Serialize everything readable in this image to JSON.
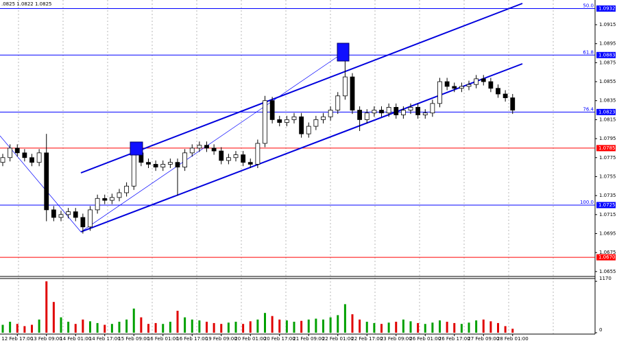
{
  "chart_data": {
    "type": "candlestick",
    "header": ".0825 1.0822 1.0825",
    "categories": [
      null,
      null,
      "12 Feb 17:00",
      null,
      null,
      null,
      "13 Feb 09:00",
      null,
      null,
      null,
      "14 Feb 01:00",
      null,
      null,
      null,
      "14 Feb 17:00",
      null,
      null,
      null,
      "15 Feb 09:00",
      null,
      null,
      null,
      "16 Feb 01:00",
      null,
      null,
      null,
      "16 Feb 17:00",
      null,
      null,
      null,
      "19 Feb 09:00",
      null,
      null,
      null,
      "20 Feb 01:00",
      null,
      null,
      null,
      "20 Feb 17:00",
      null,
      null,
      null,
      "21 Feb 09:00",
      null,
      null,
      null,
      "22 Feb 01:00",
      null,
      null,
      null,
      "22 Feb 17:00",
      null,
      null,
      null,
      "23 Feb 09:00",
      null,
      null,
      null,
      "26 Feb 01:00",
      null,
      null,
      null,
      "26 Feb 17:00",
      null,
      null,
      null,
      "27 Feb 09:00",
      null,
      null,
      null,
      "28 Feb 01:00"
    ],
    "open": [
      1.077,
      1.0775,
      1.0785,
      1.078,
      1.0775,
      1.077,
      1.078,
      1.072,
      1.0712,
      1.0715,
      1.0718,
      1.0712,
      1.0702,
      1.072,
      1.0732,
      1.073,
      1.0733,
      1.0738,
      1.0745,
      1.078,
      1.077,
      1.0768,
      1.0765,
      1.0768,
      1.077,
      1.0765,
      1.078,
      1.0785,
      1.0788,
      1.0785,
      1.0782,
      1.0772,
      1.0775,
      1.0778,
      1.077,
      1.0768,
      1.079,
      1.0835,
      1.0815,
      1.0812,
      1.0815,
      1.0818,
      1.08,
      1.0808,
      1.0815,
      1.0818,
      1.0825,
      1.084,
      1.086,
      1.0825,
      1.0815,
      1.0822,
      1.0825,
      1.0822,
      1.0828,
      1.082,
      1.0825,
      1.0828,
      1.082,
      1.0822,
      1.0832,
      1.0855,
      1.085,
      1.0848,
      1.085,
      1.0852,
      1.0858,
      1.0855,
      1.0848,
      1.0842,
      1.0838
    ],
    "high": [
      1.0779,
      1.0789,
      1.0789,
      1.0784,
      1.0779,
      1.0784,
      1.08,
      1.0724,
      1.0719,
      1.0722,
      1.0722,
      1.0716,
      1.0724,
      1.0736,
      1.0736,
      1.0737,
      1.0742,
      1.0749,
      1.079,
      1.0784,
      1.0774,
      1.0772,
      1.0772,
      1.0774,
      1.0774,
      1.0784,
      1.0789,
      1.0792,
      1.0792,
      1.0789,
      1.0786,
      1.0779,
      1.0782,
      1.0782,
      1.0774,
      1.0794,
      1.084,
      1.0839,
      1.0819,
      1.0819,
      1.0822,
      1.0822,
      1.0812,
      1.0819,
      1.0822,
      1.0829,
      1.0844,
      1.0878,
      1.0864,
      1.0829,
      1.0826,
      1.0829,
      1.0829,
      1.0832,
      1.0832,
      1.0829,
      1.0832,
      1.0832,
      1.0826,
      1.0836,
      1.0859,
      1.0859,
      1.0854,
      1.0854,
      1.0856,
      1.0862,
      1.0862,
      1.0859,
      1.0852,
      1.0846,
      1.0842
    ],
    "low": [
      1.0766,
      1.0771,
      1.0776,
      1.0771,
      1.0766,
      1.0766,
      1.0708,
      1.0708,
      1.0708,
      1.0711,
      1.0708,
      1.0695,
      1.0698,
      1.0716,
      1.0726,
      1.0726,
      1.0729,
      1.0734,
      1.0741,
      1.0766,
      1.0764,
      1.0761,
      1.0761,
      1.0764,
      1.0735,
      1.0761,
      1.0776,
      1.0781,
      1.0781,
      1.0778,
      1.0768,
      1.0768,
      1.0771,
      1.0766,
      1.0764,
      1.0764,
      1.0786,
      1.0811,
      1.0808,
      1.0808,
      1.0811,
      1.0796,
      1.0796,
      1.0804,
      1.0811,
      1.0814,
      1.0821,
      1.0836,
      1.0821,
      1.0803,
      1.0811,
      1.0818,
      1.0818,
      1.0818,
      1.0816,
      1.0816,
      1.0821,
      1.0816,
      1.0816,
      1.0818,
      1.0828,
      1.0846,
      1.0844,
      1.0844,
      1.0846,
      1.0848,
      1.0851,
      1.0844,
      1.0838,
      1.0834,
      1.0821
    ],
    "close": [
      1.0775,
      1.0785,
      1.078,
      1.0775,
      1.077,
      1.078,
      1.072,
      1.0712,
      1.0715,
      1.0718,
      1.0712,
      1.0702,
      1.072,
      1.0732,
      1.073,
      1.0733,
      1.0738,
      1.0745,
      1.078,
      1.077,
      1.0768,
      1.0765,
      1.0768,
      1.077,
      1.0765,
      1.078,
      1.0785,
      1.0788,
      1.0785,
      1.0782,
      1.0772,
      1.0775,
      1.0778,
      1.077,
      1.0768,
      1.079,
      1.0835,
      1.0815,
      1.0812,
      1.0815,
      1.0818,
      1.08,
      1.0808,
      1.0815,
      1.0818,
      1.0825,
      1.084,
      1.086,
      1.0825,
      1.0815,
      1.0822,
      1.0825,
      1.0822,
      1.0828,
      1.082,
      1.0825,
      1.0828,
      1.082,
      1.0822,
      1.0832,
      1.0855,
      1.085,
      1.0848,
      1.085,
      1.0852,
      1.0858,
      1.0855,
      1.0848,
      1.0842,
      1.0838,
      1.0825
    ],
    "volume": [
      180,
      250,
      200,
      150,
      180,
      300,
      1170,
      700,
      350,
      250,
      200,
      300,
      260,
      220,
      180,
      200,
      250,
      300,
      550,
      350,
      200,
      220,
      200,
      250,
      500,
      350,
      300,
      280,
      250,
      220,
      200,
      230,
      250,
      200,
      260,
      300,
      450,
      380,
      300,
      280,
      250,
      270,
      300,
      320,
      300,
      350,
      400,
      650,
      420,
      300,
      250,
      220,
      200,
      230,
      250,
      300,
      260,
      220,
      200,
      230,
      280,
      250,
      220,
      200,
      230,
      280,
      300,
      260,
      220,
      150,
      90
    ],
    "up_color": "#00a000",
    "down_color": "#e00000",
    "ylim": [
      1.0652,
      1.0941
    ],
    "yticks": [
      1.0915,
      1.0895,
      1.0875,
      1.0855,
      1.0835,
      1.0815,
      1.0795,
      1.0775,
      1.0755,
      1.0735,
      1.0715,
      1.0695,
      {
        "value": 1.0675,
        "label": "1.0675"
      },
      1.0655
    ],
    "volume_ylim": [
      0,
      1250
    ],
    "volume_yticks": [
      1170,
      0
    ],
    "levels": [
      {
        "value": 1.0932,
        "label": "1.0932",
        "fib": "50.0",
        "color": "#0000ff"
      },
      {
        "value": 1.0883,
        "label": "1.0883",
        "fib": "61.8",
        "color": "#0000ff"
      },
      {
        "value": 1.0823,
        "label": "1.0823",
        "fib": "76.4",
        "color": "#0000ff"
      },
      {
        "value": 1.0785,
        "label": "1.0785",
        "color": "#ff0000"
      },
      {
        "value": 1.0725,
        "label": "1.0725",
        "fib": "100.0",
        "color": "#0000ff"
      },
      {
        "value": 1.067,
        "label": "1.0670",
        "color": "#ff0000"
      }
    ]
  }
}
